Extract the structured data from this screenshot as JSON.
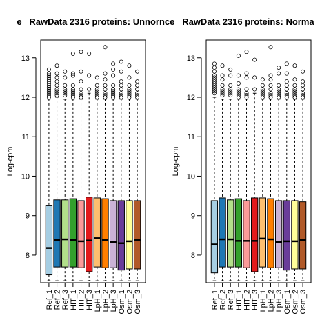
{
  "chart_data": [
    {
      "type": "boxplot",
      "title": "e _RawData 2316  proteins: Unnornce _RawData 2316  proteins: Norma",
      "ylabel": "Log-cpm",
      "xlabel": "",
      "ylim": [
        7.3,
        13.45
      ],
      "yticks": [
        8,
        9,
        10,
        11,
        12,
        13
      ],
      "categories": [
        "Ref_1",
        "Ref_2",
        "Ref_3",
        "HIT_1",
        "HIT_2",
        "HIT_3",
        "LpH_1",
        "LpH_2",
        "LpH_3",
        "Osm_1",
        "Osm_2",
        "Osm_3"
      ],
      "colors": [
        "#a6cee3",
        "#1f78b4",
        "#b2df8a",
        "#33a02c",
        "#fb9a99",
        "#e31a1c",
        "#fdbf6f",
        "#ff7f00",
        "#cab2d6",
        "#6a3d9a",
        "#ffff99",
        "#b15928"
      ],
      "boxes": [
        {
          "min": 7.35,
          "q1": 7.5,
          "median": 8.18,
          "q3": 9.25,
          "max": 11.95,
          "outliers": [
            12.0,
            12.05,
            12.1,
            12.15,
            12.2,
            12.25,
            12.3,
            12.35,
            12.4,
            12.45,
            12.5,
            12.55,
            12.6,
            12.7
          ]
        },
        {
          "min": 7.35,
          "q1": 7.7,
          "median": 8.38,
          "q3": 9.4,
          "max": 12.0,
          "outliers": [
            12.05,
            12.1,
            12.15,
            12.2,
            12.3,
            12.4,
            12.5,
            12.6,
            12.8
          ]
        },
        {
          "min": 7.35,
          "q1": 7.7,
          "median": 8.4,
          "q3": 9.4,
          "max": 11.95,
          "outliers": [
            12.05,
            12.1,
            12.15,
            12.2,
            12.3,
            12.5,
            12.65
          ]
        },
        {
          "min": 7.35,
          "q1": 7.7,
          "median": 8.38,
          "q3": 9.43,
          "max": 11.95,
          "outliers": [
            12.0,
            12.05,
            12.1,
            12.15,
            12.2,
            12.3,
            12.55,
            12.6,
            13.1
          ]
        },
        {
          "min": 7.35,
          "q1": 7.68,
          "median": 8.35,
          "q3": 9.38,
          "max": 11.95,
          "outliers": [
            12.0,
            12.05,
            12.1,
            12.2,
            12.4,
            12.65,
            13.15
          ]
        },
        {
          "min": 7.35,
          "q1": 7.58,
          "median": 8.37,
          "q3": 9.47,
          "max": 12.1,
          "outliers": [
            12.2,
            12.55,
            13.1
          ]
        },
        {
          "min": 7.35,
          "q1": 7.7,
          "median": 8.43,
          "q3": 9.45,
          "max": 11.95,
          "outliers": [
            12.0,
            12.05,
            12.1,
            12.15,
            12.2,
            12.3,
            12.5
          ]
        },
        {
          "min": 7.35,
          "q1": 7.68,
          "median": 8.38,
          "q3": 9.43,
          "max": 11.95,
          "outliers": [
            12.0,
            12.05,
            12.1,
            12.2,
            12.3,
            12.45,
            12.6,
            13.27
          ]
        },
        {
          "min": 7.35,
          "q1": 7.68,
          "median": 8.33,
          "q3": 9.38,
          "max": 11.95,
          "outliers": [
            12.0,
            12.05,
            12.1,
            12.15,
            12.2,
            12.3,
            12.55,
            12.7,
            12.85
          ]
        },
        {
          "min": 7.35,
          "q1": 7.62,
          "median": 8.3,
          "q3": 9.38,
          "max": 11.95,
          "outliers": [
            12.0,
            12.05,
            12.1,
            12.2,
            12.3,
            12.4,
            12.65,
            12.9
          ]
        },
        {
          "min": 7.35,
          "q1": 7.65,
          "median": 8.35,
          "q3": 9.38,
          "max": 11.95,
          "outliers": [
            12.0,
            12.05,
            12.1,
            12.15,
            12.2,
            12.3,
            12.5,
            12.8
          ]
        },
        {
          "min": 7.35,
          "q1": 7.65,
          "median": 8.38,
          "q3": 9.38,
          "max": 11.95,
          "outliers": [
            12.0,
            12.05,
            12.1,
            12.2,
            12.3,
            12.4,
            12.65
          ]
        }
      ]
    },
    {
      "type": "boxplot",
      "title": "",
      "ylabel": "Log-cpm",
      "xlabel": "",
      "ylim": [
        7.3,
        13.45
      ],
      "yticks": [
        8,
        9,
        10,
        11,
        12,
        13
      ],
      "categories": [
        "Ref_1",
        "Ref_2",
        "Ref_3",
        "HIT_1",
        "HIT_2",
        "HIT_3",
        "LpH_1",
        "LpH_2",
        "LpH_3",
        "Osm_1",
        "Osm_2",
        "Osm_3"
      ],
      "colors": [
        "#a6cee3",
        "#1f78b4",
        "#b2df8a",
        "#33a02c",
        "#fb9a99",
        "#e31a1c",
        "#fdbf6f",
        "#ff7f00",
        "#cab2d6",
        "#6a3d9a",
        "#ffff99",
        "#b15928"
      ],
      "boxes": [
        {
          "min": 7.35,
          "q1": 7.55,
          "median": 8.27,
          "q3": 9.38,
          "max": 12.0,
          "outliers": [
            12.1,
            12.15,
            12.2,
            12.25,
            12.3,
            12.35,
            12.4,
            12.45,
            12.5,
            12.55,
            12.65,
            12.75,
            12.85
          ]
        },
        {
          "min": 7.35,
          "q1": 7.7,
          "median": 8.4,
          "q3": 9.45,
          "max": 11.95,
          "outliers": [
            12.05,
            12.1,
            12.15,
            12.2,
            12.3,
            12.45,
            12.55,
            12.8
          ]
        },
        {
          "min": 7.35,
          "q1": 7.7,
          "median": 8.4,
          "q3": 9.4,
          "max": 11.95,
          "outliers": [
            12.05,
            12.1,
            12.15,
            12.2,
            12.3,
            12.55,
            12.7
          ]
        },
        {
          "min": 7.35,
          "q1": 7.7,
          "median": 8.36,
          "q3": 9.43,
          "max": 11.95,
          "outliers": [
            12.0,
            12.05,
            12.1,
            12.15,
            12.2,
            12.35,
            12.55,
            13.05
          ]
        },
        {
          "min": 7.35,
          "q1": 7.68,
          "median": 8.36,
          "q3": 9.38,
          "max": 11.95,
          "outliers": [
            12.0,
            12.05,
            12.1,
            12.2,
            12.5,
            12.6,
            13.15
          ]
        },
        {
          "min": 7.35,
          "q1": 7.58,
          "median": 8.36,
          "q3": 9.45,
          "max": 12.1,
          "outliers": [
            12.2,
            12.5,
            12.95
          ]
        },
        {
          "min": 7.35,
          "q1": 7.7,
          "median": 8.42,
          "q3": 9.45,
          "max": 11.95,
          "outliers": [
            12.0,
            12.05,
            12.1,
            12.15,
            12.2,
            12.3,
            12.45
          ]
        },
        {
          "min": 7.35,
          "q1": 7.68,
          "median": 8.4,
          "q3": 9.43,
          "max": 11.95,
          "outliers": [
            12.0,
            12.05,
            12.1,
            12.2,
            12.3,
            12.45,
            12.55,
            13.27
          ]
        },
        {
          "min": 7.35,
          "q1": 7.68,
          "median": 8.33,
          "q3": 9.38,
          "max": 11.95,
          "outliers": [
            12.0,
            12.05,
            12.1,
            12.15,
            12.2,
            12.3,
            12.6,
            12.75
          ]
        },
        {
          "min": 7.35,
          "q1": 7.62,
          "median": 8.35,
          "q3": 9.38,
          "max": 11.95,
          "outliers": [
            12.0,
            12.05,
            12.1,
            12.2,
            12.3,
            12.4,
            12.6,
            12.85
          ]
        },
        {
          "min": 7.35,
          "q1": 7.65,
          "median": 8.35,
          "q3": 9.38,
          "max": 11.95,
          "outliers": [
            12.0,
            12.05,
            12.1,
            12.15,
            12.2,
            12.3,
            12.45,
            12.8
          ]
        },
        {
          "min": 7.35,
          "q1": 7.65,
          "median": 8.38,
          "q3": 9.35,
          "max": 11.95,
          "outliers": [
            12.0,
            12.05,
            12.1,
            12.2,
            12.3,
            12.4,
            12.65
          ]
        }
      ]
    }
  ]
}
